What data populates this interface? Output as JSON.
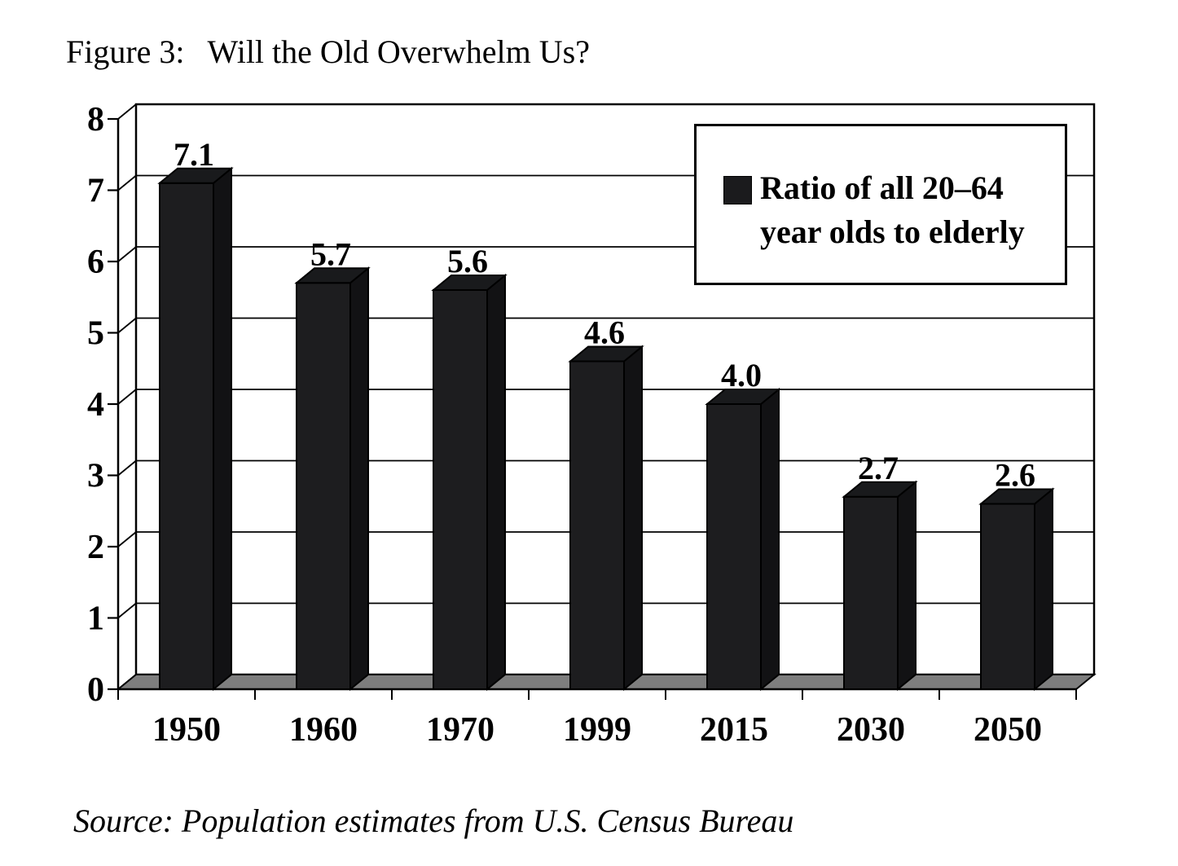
{
  "figure": {
    "title_prefix": "Figure 3:",
    "title_main": "Will the Old Overwhelm Us?",
    "source": "Source: Population estimates from U.S. Census Bureau"
  },
  "legend": {
    "line1": "Ratio of all 20–64",
    "line2": "year olds to elderly",
    "swatch_color": "#1b1b1d"
  },
  "chart_data": {
    "type": "bar",
    "style": "3d-column",
    "title": "Figure 3: Will the Old Overwhelm Us?",
    "categories": [
      "1950",
      "1960",
      "1970",
      "1999",
      "2015",
      "2030",
      "2050"
    ],
    "series": [
      {
        "name": "Ratio of all 20–64 year olds to elderly",
        "values": [
          7.1,
          5.7,
          5.6,
          4.6,
          4.0,
          2.7,
          2.6
        ]
      }
    ],
    "data_labels": [
      "7.1",
      "5.7",
      "5.6",
      "4.6",
      "4.0",
      "2.7",
      "2.6"
    ],
    "xlabel": "",
    "ylabel": "",
    "ylim": [
      0,
      8
    ],
    "yticks": [
      0,
      1,
      2,
      3,
      4,
      5,
      6,
      7,
      8
    ],
    "grid": true,
    "legend_position": "top-right",
    "colors": {
      "bar_front": "#1d1d1f",
      "bar_top": "#191a1c",
      "bar_side": "#121214",
      "floor": "#7e7e7e",
      "wall": "#ffffff",
      "line": "#000000",
      "text": "#000000"
    }
  }
}
